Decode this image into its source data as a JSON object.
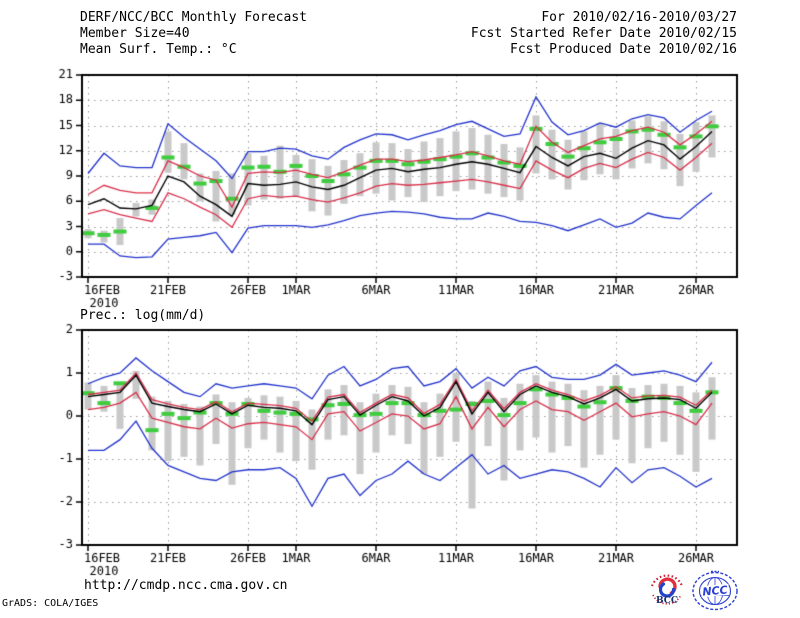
{
  "header": {
    "title": "DERF/NCC/BCC Monthly Forecast",
    "member_size": "Member Size=40",
    "variable_label": "Mean Surf. Temp.: °C",
    "for_range": "For 2010/02/16-2010/03/27",
    "refer_date": "Fcst Started Refer Date 2010/02/15",
    "produced_date": "Fcst Produced Date 2010/02/16"
  },
  "footer": {
    "url": "http://cmdp.ncc.cma.gov.cn",
    "grads_credit": "GrADS: COLA/IGES"
  },
  "logos": {
    "bcc_text": "BCC",
    "ncc_text": "NCC"
  },
  "colors": {
    "blue": "#2233cc",
    "red": "#d8304a",
    "black": "#000000",
    "green": "#3fcc3f",
    "bar": "#c9c9c9",
    "grid": "#999999",
    "frame": "#000000"
  },
  "chart_data": [
    {
      "type": "line",
      "title": "Mean Surf. Temp.: °C",
      "ylim": [
        -3,
        21
      ],
      "ytick_step": 3,
      "n_days": 40,
      "start_date": "2010/02/16",
      "end_date": "2010/03/27",
      "x_ticks": [
        {
          "day": 0,
          "label": "16FEB",
          "year": "2010"
        },
        {
          "day": 5,
          "label": "21FEB"
        },
        {
          "day": 10,
          "label": "26FEB"
        },
        {
          "day": 13,
          "label": "1MAR"
        },
        {
          "day": 18,
          "label": "6MAR"
        },
        {
          "day": 23,
          "label": "11MAR"
        },
        {
          "day": 28,
          "label": "16MAR"
        },
        {
          "day": 33,
          "label": "21MAR"
        },
        {
          "day": 38,
          "label": "26MAR"
        }
      ],
      "series": [
        {
          "name": "ensemble-max",
          "color": "blue",
          "values": [
            9.3,
            11.7,
            10.2,
            10.0,
            10.0,
            15.2,
            13.6,
            12.2,
            10.8,
            8.7,
            11.9,
            11.9,
            12.3,
            12.2,
            11.4,
            11.0,
            12.4,
            13.3,
            14.0,
            13.9,
            13.3,
            13.9,
            14.4,
            15.1,
            15.5,
            14.6,
            13.7,
            14.0,
            18.4,
            15.4,
            13.9,
            14.4,
            15.3,
            14.8,
            15.8,
            16.3,
            15.9,
            14.2,
            15.6,
            16.7
          ]
        },
        {
          "name": "spread-upper",
          "color": "red",
          "values": [
            6.8,
            7.9,
            7.3,
            7.0,
            7.0,
            10.8,
            10.0,
            9.0,
            8.5,
            5.3,
            9.3,
            9.5,
            9.4,
            9.7,
            9.2,
            8.8,
            9.5,
            10.3,
            11.0,
            11.0,
            10.7,
            10.9,
            11.2,
            11.5,
            11.9,
            11.4,
            10.8,
            10.4,
            14.9,
            13.0,
            11.8,
            12.6,
            13.4,
            13.7,
            14.4,
            14.8,
            14.2,
            12.7,
            14.0,
            15.5
          ]
        },
        {
          "name": "ensemble-mean",
          "color": "black",
          "values": [
            5.6,
            6.3,
            5.2,
            5.1,
            5.5,
            9.0,
            8.3,
            6.6,
            5.6,
            4.2,
            8.1,
            7.9,
            8.0,
            8.3,
            7.7,
            7.4,
            7.9,
            8.8,
            9.7,
            9.9,
            9.5,
            9.8,
            10.0,
            10.4,
            10.7,
            10.4,
            9.9,
            9.4,
            12.5,
            11.2,
            10.2,
            11.3,
            11.7,
            11.1,
            12.3,
            13.2,
            12.7,
            11.0,
            12.5,
            14.3
          ]
        },
        {
          "name": "spread-lower",
          "color": "red",
          "values": [
            4.5,
            5.0,
            4.4,
            4.0,
            3.6,
            7.0,
            6.3,
            5.3,
            4.4,
            2.9,
            6.3,
            6.7,
            6.5,
            6.6,
            6.2,
            5.9,
            6.4,
            7.0,
            7.8,
            8.1,
            7.9,
            8.0,
            8.2,
            8.4,
            8.6,
            8.3,
            7.9,
            7.5,
            10.8,
            9.7,
            8.8,
            9.9,
            10.5,
            10.0,
            11.0,
            11.8,
            11.2,
            9.7,
            11.2,
            12.9
          ]
        },
        {
          "name": "ensemble-min",
          "color": "blue",
          "values": [
            0.9,
            0.9,
            -0.5,
            -0.7,
            -0.6,
            1.5,
            1.7,
            1.9,
            2.3,
            -0.1,
            2.8,
            3.1,
            3.1,
            3.1,
            2.9,
            3.2,
            3.7,
            4.3,
            4.6,
            4.8,
            4.7,
            4.5,
            4.1,
            3.9,
            3.9,
            4.6,
            4.2,
            3.6,
            3.5,
            3.1,
            2.5,
            3.2,
            3.9,
            2.9,
            3.4,
            4.6,
            4.1,
            3.9,
            5.5,
            7.0
          ]
        }
      ],
      "observation": [
        2.2,
        2.0,
        2.4,
        null,
        5.2,
        11.2,
        10.1,
        8.1,
        8.4,
        6.3,
        10.0,
        10.1,
        9.5,
        10.2,
        9.0,
        8.4,
        9.2,
        10.0,
        10.8,
        10.8,
        10.4,
        10.7,
        11.0,
        11.3,
        11.7,
        11.2,
        10.6,
        10.2,
        14.6,
        12.8,
        11.3,
        12.3,
        13.0,
        13.4,
        14.3,
        14.5,
        13.9,
        12.4,
        13.7,
        14.9
      ],
      "spread_bars": [
        [
          1.6,
          2.7
        ],
        [
          1.1,
          2.5
        ],
        [
          0.8,
          4.0
        ],
        [
          4.2,
          5.8
        ],
        [
          4.4,
          6.2
        ],
        [
          9.4,
          14.3
        ],
        [
          8.6,
          12.9
        ],
        [
          6.0,
          9.3
        ],
        [
          3.6,
          9.6
        ],
        [
          4.4,
          9.3
        ],
        [
          5.5,
          11.7
        ],
        [
          6.2,
          11.4
        ],
        [
          6.3,
          12.6
        ],
        [
          6.5,
          11.5
        ],
        [
          4.8,
          11.0
        ],
        [
          4.3,
          10.2
        ],
        [
          5.7,
          10.9
        ],
        [
          6.6,
          11.7
        ],
        [
          6.9,
          13.0
        ],
        [
          6.1,
          12.9
        ],
        [
          6.5,
          12.2
        ],
        [
          5.9,
          13.1
        ],
        [
          6.6,
          13.5
        ],
        [
          7.2,
          14.3
        ],
        [
          7.4,
          14.7
        ],
        [
          6.9,
          13.9
        ],
        [
          6.5,
          12.8
        ],
        [
          6.1,
          12.4
        ],
        [
          9.3,
          16.2
        ],
        [
          8.6,
          14.5
        ],
        [
          7.4,
          13.3
        ],
        [
          8.5,
          14.3
        ],
        [
          9.2,
          15.3
        ],
        [
          8.6,
          14.6
        ],
        [
          9.9,
          15.6
        ],
        [
          10.5,
          16.1
        ],
        [
          9.8,
          15.5
        ],
        [
          7.8,
          14.0
        ],
        [
          9.5,
          15.4
        ],
        [
          11.2,
          16.2
        ]
      ]
    },
    {
      "type": "line",
      "title": "Prec.: log(mm/d)",
      "ylim": [
        -3,
        2
      ],
      "ytick_step": 1,
      "n_days": 40,
      "start_date": "2010/02/16",
      "end_date": "2010/03/27",
      "x_ticks": [
        {
          "day": 0,
          "label": "16FEB",
          "year": "2010"
        },
        {
          "day": 5,
          "label": "21FEB"
        },
        {
          "day": 10,
          "label": "26FEB"
        },
        {
          "day": 13,
          "label": "1MAR"
        },
        {
          "day": 18,
          "label": "6MAR"
        },
        {
          "day": 23,
          "label": "11MAR"
        },
        {
          "day": 28,
          "label": "16MAR"
        },
        {
          "day": 33,
          "label": "21MAR"
        },
        {
          "day": 38,
          "label": "26MAR"
        }
      ],
      "series": [
        {
          "name": "ensemble-max",
          "color": "blue",
          "values": [
            0.75,
            0.9,
            1.0,
            1.35,
            1.05,
            0.8,
            0.55,
            0.45,
            0.75,
            0.65,
            0.7,
            0.75,
            0.7,
            0.65,
            0.4,
            0.95,
            1.15,
            0.7,
            0.85,
            1.1,
            1.15,
            0.7,
            0.8,
            1.1,
            0.65,
            0.9,
            0.7,
            1.05,
            1.15,
            0.9,
            0.85,
            0.85,
            0.95,
            1.2,
            0.95,
            1.0,
            1.05,
            0.95,
            0.8,
            1.25
          ]
        },
        {
          "name": "spread-upper",
          "color": "red",
          "values": [
            0.5,
            0.55,
            0.6,
            1.0,
            0.38,
            0.28,
            0.2,
            0.15,
            0.33,
            0.1,
            0.3,
            0.27,
            0.24,
            0.18,
            -0.12,
            0.44,
            0.5,
            0.08,
            0.3,
            0.5,
            0.42,
            0.06,
            0.27,
            0.85,
            0.12,
            0.6,
            0.17,
            0.55,
            0.75,
            0.6,
            0.5,
            0.35,
            0.48,
            0.68,
            0.42,
            0.47,
            0.48,
            0.44,
            0.25,
            0.6
          ]
        },
        {
          "name": "ensemble-mean",
          "color": "black",
          "values": [
            0.45,
            0.5,
            0.55,
            0.95,
            0.3,
            0.22,
            0.15,
            0.1,
            0.28,
            0.05,
            0.25,
            0.2,
            0.18,
            0.12,
            -0.2,
            0.38,
            0.45,
            0.02,
            0.25,
            0.45,
            0.35,
            0.0,
            0.2,
            0.8,
            0.05,
            0.55,
            0.1,
            0.5,
            0.7,
            0.55,
            0.45,
            0.28,
            0.42,
            0.62,
            0.35,
            0.4,
            0.42,
            0.38,
            0.18,
            0.55
          ]
        },
        {
          "name": "spread-lower",
          "color": "red",
          "values": [
            0.15,
            0.2,
            0.3,
            0.55,
            -0.05,
            -0.15,
            -0.25,
            -0.3,
            -0.05,
            -0.28,
            -0.18,
            -0.15,
            -0.2,
            -0.25,
            -0.55,
            0.05,
            0.1,
            -0.35,
            -0.15,
            0.05,
            0.0,
            -0.3,
            -0.18,
            0.45,
            -0.3,
            0.2,
            -0.25,
            0.15,
            0.35,
            0.15,
            0.1,
            -0.1,
            0.1,
            0.3,
            -0.02,
            0.05,
            0.1,
            0.0,
            -0.2,
            0.3
          ]
        },
        {
          "name": "ensemble-min",
          "color": "blue",
          "values": [
            -0.8,
            -0.8,
            -0.55,
            -0.12,
            -0.75,
            -1.15,
            -1.3,
            -1.45,
            -1.5,
            -1.3,
            -1.25,
            -1.25,
            -1.2,
            -1.45,
            -2.1,
            -1.45,
            -1.35,
            -1.85,
            -1.5,
            -1.35,
            -1.05,
            -1.35,
            -1.5,
            -1.2,
            -0.9,
            -1.35,
            -1.15,
            -1.45,
            -1.35,
            -1.25,
            -1.3,
            -1.45,
            -1.65,
            -1.2,
            -1.55,
            -1.25,
            -1.2,
            -1.4,
            -1.65,
            -1.45
          ]
        }
      ],
      "observation": [
        0.53,
        0.3,
        0.76,
        null,
        -0.33,
        0.05,
        -0.05,
        0.08,
        0.3,
        0.05,
        0.28,
        0.12,
        0.08,
        0.05,
        -0.08,
        0.25,
        0.28,
        0.02,
        0.05,
        0.3,
        0.3,
        0.02,
        0.12,
        0.15,
        0.28,
        0.35,
        0.02,
        0.3,
        0.62,
        0.5,
        0.42,
        0.22,
        0.32,
        0.65,
        0.35,
        0.45,
        0.42,
        0.3,
        0.12,
        0.55
      ],
      "spread_bars": [
        [
          0.15,
          0.78
        ],
        [
          0.1,
          0.7
        ],
        [
          -0.3,
          0.72
        ],
        [
          0.4,
          1.05
        ],
        [
          -0.8,
          0.45
        ],
        [
          -1.05,
          0.35
        ],
        [
          -0.95,
          0.28
        ],
        [
          -1.15,
          0.22
        ],
        [
          -0.65,
          0.5
        ],
        [
          -1.6,
          0.32
        ],
        [
          -0.75,
          0.42
        ],
        [
          -0.55,
          0.48
        ],
        [
          -0.85,
          0.45
        ],
        [
          -1.05,
          0.35
        ],
        [
          -1.25,
          0.15
        ],
        [
          -0.55,
          0.62
        ],
        [
          -0.45,
          0.72
        ],
        [
          -1.35,
          0.32
        ],
        [
          -0.85,
          0.52
        ],
        [
          -0.45,
          0.72
        ],
        [
          -0.65,
          0.68
        ],
        [
          -1.35,
          0.32
        ],
        [
          -0.95,
          0.52
        ],
        [
          -0.6,
          1.0
        ],
        [
          -2.15,
          0.35
        ],
        [
          -0.7,
          0.8
        ],
        [
          -1.5,
          0.42
        ],
        [
          -0.8,
          0.75
        ],
        [
          -0.5,
          0.95
        ],
        [
          -0.85,
          0.8
        ],
        [
          -0.7,
          0.75
        ],
        [
          -1.2,
          0.6
        ],
        [
          -0.9,
          0.7
        ],
        [
          -0.55,
          0.95
        ],
        [
          -1.1,
          0.65
        ],
        [
          -0.75,
          0.72
        ],
        [
          -0.6,
          0.75
        ],
        [
          -0.9,
          0.7
        ],
        [
          -1.3,
          0.55
        ],
        [
          -0.55,
          0.9
        ]
      ]
    }
  ]
}
